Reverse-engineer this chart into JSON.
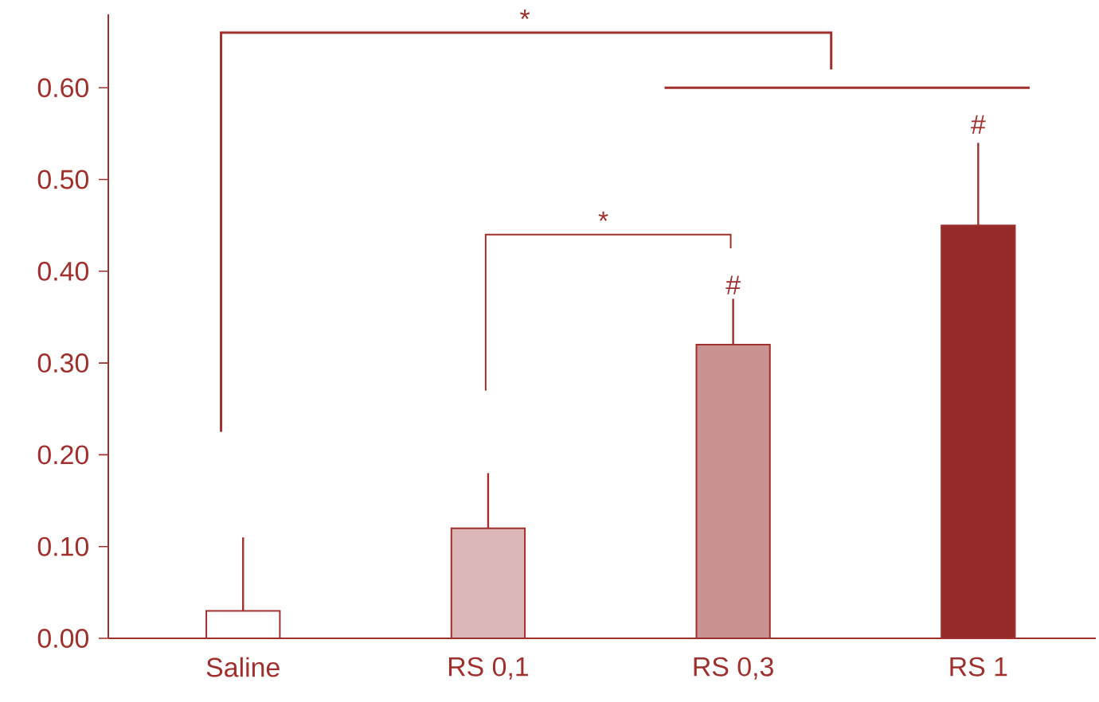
{
  "chart_data": {
    "type": "bar",
    "categories": [
      "Saline",
      "RS 0,1",
      "RS 0,3",
      "RS 1"
    ],
    "values": [
      0.03,
      0.12,
      0.32,
      0.45
    ],
    "colors": [
      "#ffffff",
      "#dbb7b7",
      "#c99393",
      "#952a2a"
    ],
    "errors": [
      0.08,
      0.06,
      0.05,
      0.09
    ],
    "ylim": [
      0,
      0.68
    ],
    "yticks": [
      {
        "value": 0,
        "label": "0.00"
      },
      {
        "value": 0.1,
        "label": "0.10"
      },
      {
        "value": 0.2,
        "label": "0.20"
      },
      {
        "value": 0.3,
        "label": "0.30"
      },
      {
        "value": 0.4,
        "label": "0.40"
      },
      {
        "value": 0.5,
        "label": "0.50"
      },
      {
        "value": 0.6,
        "label": "0.60"
      }
    ],
    "annotations": [
      "*",
      "*",
      "#",
      "#"
    ]
  }
}
